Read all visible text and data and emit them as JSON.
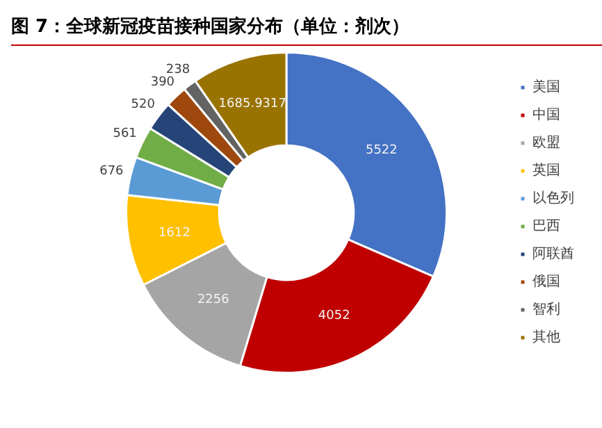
{
  "chart_data": {
    "type": "donut",
    "title": "图 7：全球新冠疫苗接种国家分布（单位：剂次）",
    "categories": [
      "美国",
      "中国",
      "欧盟",
      "英国",
      "以色列",
      "巴西",
      "阿联酋",
      "俄国",
      "智利",
      "其他"
    ],
    "values": [
      5522,
      4052,
      2256,
      1612,
      676,
      561,
      520,
      390,
      238,
      1685.9317
    ],
    "colors": [
      "#4472c4",
      "#c00000",
      "#a5a5a5",
      "#ffc000",
      "#5b9bd5",
      "#70ad47",
      "#264478",
      "#9e480e",
      "#636363",
      "#997300"
    ],
    "data_labels": true,
    "legend": "right"
  }
}
